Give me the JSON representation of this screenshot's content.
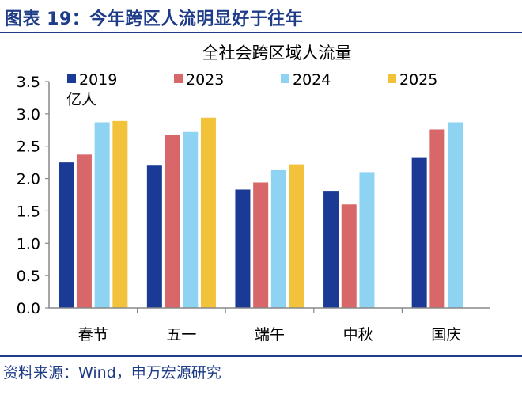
{
  "figure": {
    "title": "图表 19：今年跨区人流明显好于往年",
    "source": "资料来源：Wind，申万宏源研究"
  },
  "chart_data": {
    "type": "bar",
    "title": "全社会跨区域人流量",
    "ylabel": "亿人",
    "xlabel": "",
    "categories": [
      "春节",
      "五一",
      "端午",
      "中秋",
      "国庆"
    ],
    "series": [
      {
        "name": "2019",
        "color": "#1a3a96",
        "values": [
          2.25,
          2.2,
          1.83,
          1.81,
          2.33
        ]
      },
      {
        "name": "2023",
        "color": "#d8676a",
        "values": [
          2.37,
          2.67,
          1.94,
          1.6,
          2.76
        ]
      },
      {
        "name": "2024",
        "color": "#8fd3f2",
        "values": [
          2.87,
          2.72,
          2.13,
          2.1,
          2.87
        ]
      },
      {
        "name": "2025",
        "color": "#f3c23b",
        "values": [
          2.89,
          2.94,
          2.22,
          null,
          null
        ]
      }
    ],
    "ylim": [
      0,
      3.5
    ],
    "yticks": [
      "0.0",
      "0.5",
      "1.0",
      "1.5",
      "2.0",
      "2.5",
      "3.0",
      "3.5"
    ],
    "grid": false,
    "legend": "top"
  }
}
